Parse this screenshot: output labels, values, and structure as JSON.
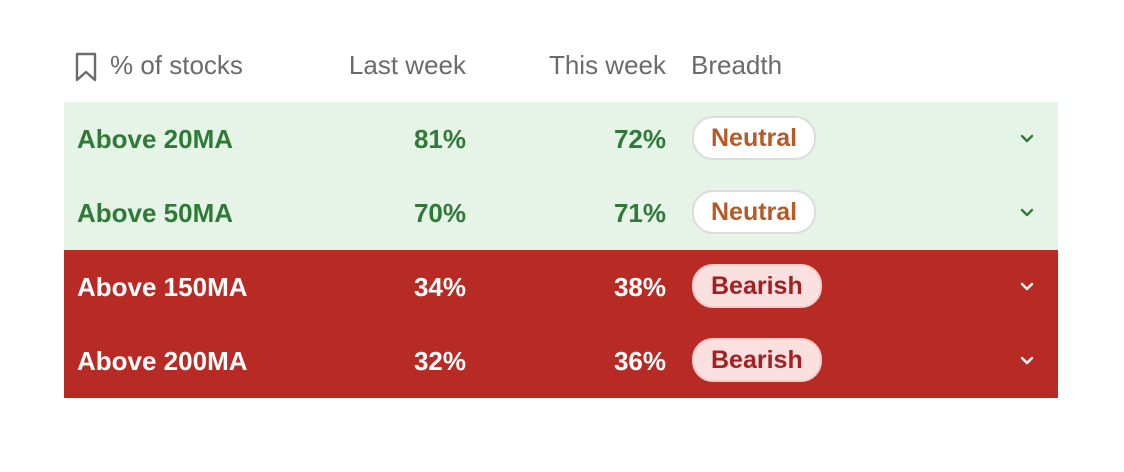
{
  "header": {
    "metric_label": "% of stocks",
    "last_week_label": "Last week",
    "this_week_label": "This week",
    "breadth_label": "Breadth"
  },
  "rows": [
    {
      "metric": "Above 20MA",
      "last_week": "81%",
      "this_week": "72%",
      "breadth": "Neutral",
      "status": "neutral"
    },
    {
      "metric": "Above 50MA",
      "last_week": "70%",
      "this_week": "71%",
      "breadth": "Neutral",
      "status": "neutral"
    },
    {
      "metric": "Above 150MA",
      "last_week": "34%",
      "this_week": "38%",
      "breadth": "Bearish",
      "status": "bearish"
    },
    {
      "metric": "Above 200MA",
      "last_week": "32%",
      "this_week": "36%",
      "breadth": "Bearish",
      "status": "bearish"
    }
  ],
  "colors": {
    "neutral_row_bg": "#e5f4e7",
    "neutral_row_text": "#2f7a36",
    "neutral_pill_text": "#b65a26",
    "bearish_row_bg": "#b72b24",
    "bearish_row_text": "#ffffff",
    "bearish_pill_bg": "#fbe0e0",
    "bearish_pill_text": "#a42020"
  },
  "icons": {
    "header": "bookmark-icon",
    "row_toggle": "chevron-down-icon"
  }
}
